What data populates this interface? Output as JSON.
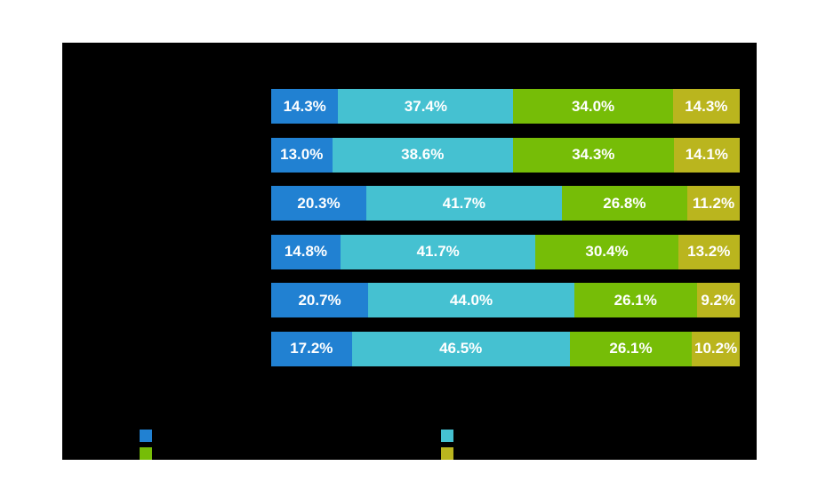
{
  "chart": {
    "panel_background": "#000000",
    "page_background": "#ffffff",
    "data_label_color": "#ffffff"
  },
  "chart_data": {
    "type": "bar",
    "orientation": "horizontal",
    "stacked": true,
    "value_unit": "percent",
    "xlim": [
      0,
      100
    ],
    "grid": false,
    "rows_count": 6,
    "series": [
      {
        "name": "series-blue",
        "color": "#2181d2",
        "values": [
          14.3,
          13.0,
          20.3,
          14.8,
          20.7,
          17.2
        ]
      },
      {
        "name": "series-cyan",
        "color": "#45c1d1",
        "values": [
          37.4,
          38.6,
          41.7,
          41.7,
          44.0,
          46.5
        ]
      },
      {
        "name": "series-green",
        "color": "#76bd07",
        "values": [
          34.0,
          34.3,
          26.8,
          30.4,
          26.1,
          26.1
        ]
      },
      {
        "name": "series-olive",
        "color": "#bab51e",
        "values": [
          14.3,
          14.1,
          11.2,
          13.2,
          9.2,
          10.2
        ]
      }
    ],
    "data_labels": [
      [
        "14.3%",
        "37.4%",
        "34.0%",
        "14.3%"
      ],
      [
        "13.0%",
        "38.6%",
        "34.3%",
        "14.1%"
      ],
      [
        "20.3%",
        "41.7%",
        "26.8%",
        "11.2%"
      ],
      [
        "14.8%",
        "41.7%",
        "30.4%",
        "13.2%"
      ],
      [
        "20.7%",
        "44.0%",
        "26.1%",
        "9.2%"
      ],
      [
        "17.2%",
        "46.5%",
        "26.1%",
        "10.2%"
      ]
    ],
    "legend": {
      "position": "bottom",
      "columns": 2,
      "swatches": [
        {
          "name": "legend-swatch-blue",
          "color": "#2181d2",
          "col": 0,
          "row": 0
        },
        {
          "name": "legend-swatch-cyan",
          "color": "#45c1d1",
          "col": 1,
          "row": 0
        },
        {
          "name": "legend-swatch-green",
          "color": "#76bd07",
          "col": 0,
          "row": 1
        },
        {
          "name": "legend-swatch-olive",
          "color": "#bab51e",
          "col": 1,
          "row": 1
        }
      ]
    }
  }
}
